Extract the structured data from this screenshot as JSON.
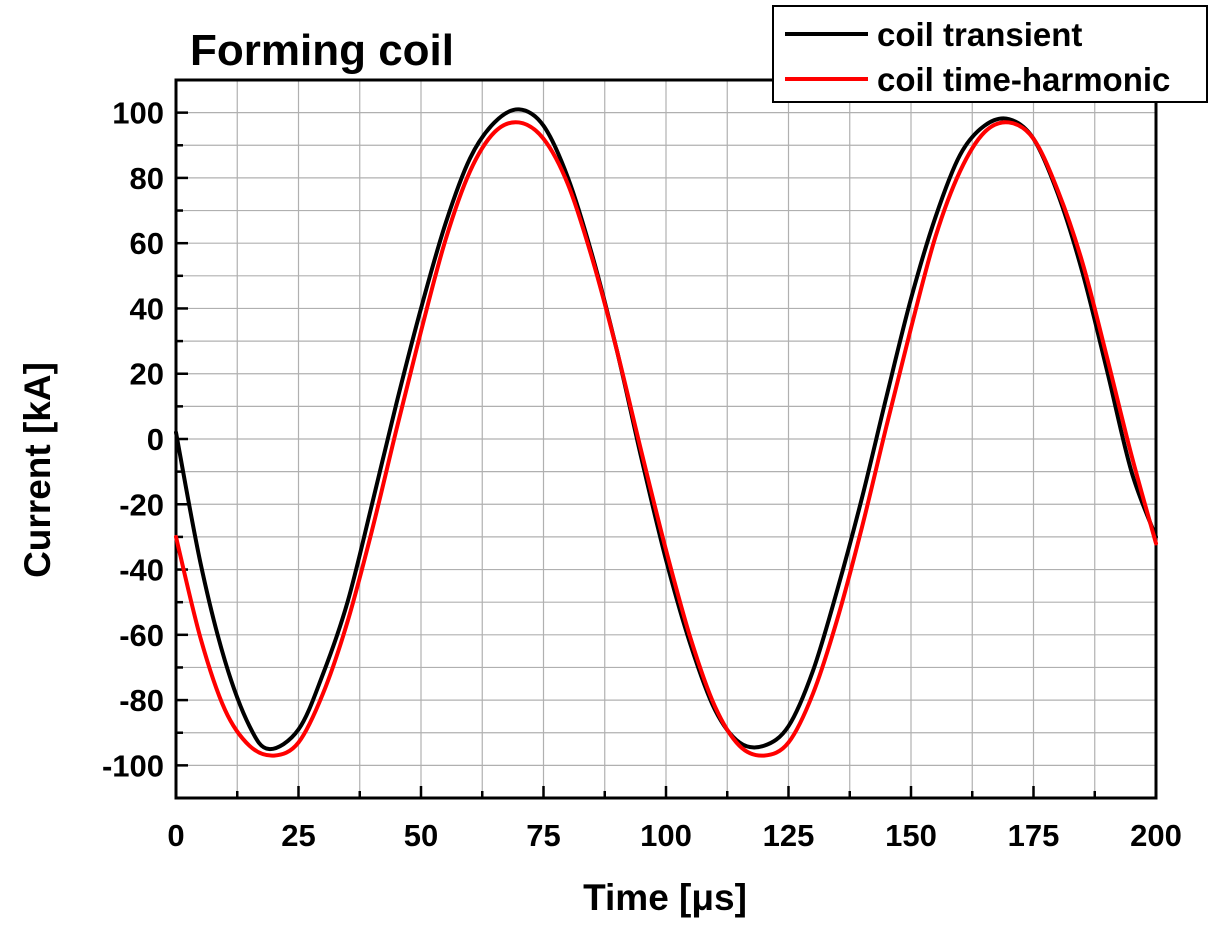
{
  "chart_data": {
    "type": "line",
    "title": "Forming coil",
    "xlabel": "Time [μs]",
    "ylabel": "Current [kA]",
    "xlim": [
      0,
      200
    ],
    "ylim": [
      -110,
      110
    ],
    "xticks": [
      0,
      25,
      50,
      75,
      100,
      125,
      150,
      175,
      200
    ],
    "yticks": [
      -100,
      -80,
      -60,
      -40,
      -20,
      0,
      20,
      40,
      60,
      80,
      100
    ],
    "grid": true,
    "legend_position": "top-right",
    "series": [
      {
        "name": "coil transient",
        "color": "#000000",
        "x": [
          0,
          5,
          10,
          15,
          19,
          25,
          30,
          35,
          40,
          45,
          50,
          55,
          60,
          65,
          70,
          75,
          80,
          85,
          90,
          95,
          100,
          105,
          110,
          115,
          120,
          125,
          130,
          135,
          140,
          145,
          150,
          155,
          160,
          165,
          170,
          175,
          180,
          185,
          190,
          195,
          200
        ],
        "y": [
          2,
          -38,
          -68,
          -88,
          -95,
          -89,
          -72,
          -50,
          -20,
          11,
          40,
          66,
          86,
          97,
          101,
          96,
          80,
          56,
          27,
          -6,
          -37,
          -63,
          -83,
          -93,
          -94,
          -88,
          -71,
          -46,
          -18,
          13,
          43,
          68,
          87,
          96,
          98,
          92,
          75,
          51,
          21,
          -10,
          -30
        ]
      },
      {
        "name": "coil time-harmonic",
        "color": "#ff0000",
        "x": [
          0,
          5,
          10,
          15,
          20,
          25,
          30,
          35,
          40,
          45,
          50,
          55,
          60,
          65,
          70,
          75,
          80,
          85,
          90,
          95,
          100,
          105,
          110,
          115,
          120,
          125,
          130,
          135,
          140,
          145,
          150,
          155,
          160,
          165,
          170,
          175,
          180,
          185,
          190,
          195,
          200
        ],
        "y": [
          -30,
          -61,
          -83,
          -94,
          -97,
          -93,
          -78,
          -56,
          -28,
          3,
          33,
          61,
          82,
          94,
          97,
          92,
          78,
          55,
          27,
          -4,
          -34,
          -61,
          -82,
          -94,
          -97,
          -93,
          -78,
          -55,
          -27,
          4,
          34,
          62,
          82,
          94,
          97,
          92,
          76,
          54,
          25,
          -5,
          -32
        ]
      }
    ]
  }
}
